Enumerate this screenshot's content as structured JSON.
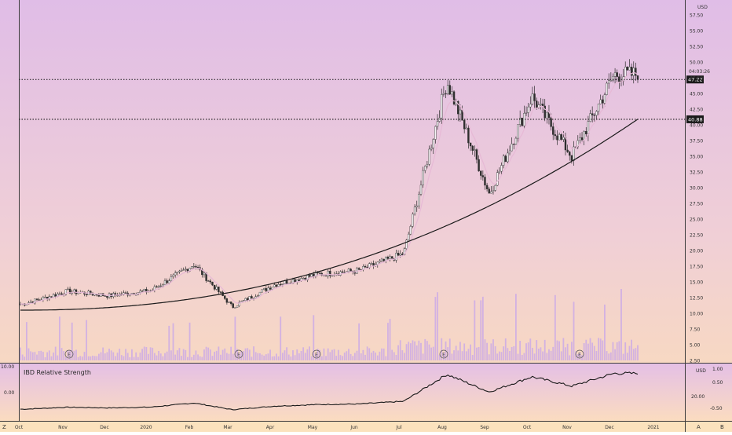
{
  "chart_data": [
    {
      "type": "candlestick",
      "currency": "USD",
      "y_ticks": [
        "57.50",
        "55.00",
        "52.50",
        "50.00",
        "47.50",
        "45.00",
        "42.50",
        "40.00",
        "37.50",
        "35.00",
        "32.50",
        "30.00",
        "27.50",
        "25.00",
        "22.50",
        "20.00",
        "17.50",
        "15.00",
        "12.50",
        "10.00",
        "7.50",
        "5.00",
        "2.50"
      ],
      "ylim": [
        2.5,
        57.5
      ],
      "x_ticks": [
        "Oct",
        "Nov",
        "Dec",
        "2020",
        "Feb",
        "Mar",
        "Apr",
        "May",
        "Jun",
        "Jul",
        "Aug",
        "Sep",
        "Oct",
        "Nov",
        "Dec",
        "2021"
      ],
      "horizontal_lines": [
        {
          "value": 47.22,
          "label": "47.22"
        },
        {
          "value": 40.88,
          "label": "40.88"
        }
      ],
      "countdown_label": "04:03:26",
      "earnings_markers": [
        "E",
        "E",
        "E",
        "E",
        "E"
      ],
      "close_by_month": [
        {
          "month": "Oct",
          "close": 11.5
        },
        {
          "month": "Nov",
          "close": 13.5
        },
        {
          "month": "Dec",
          "close": 12.8
        },
        {
          "month": "2020",
          "close": 13.6
        },
        {
          "month": "Feb",
          "close": 17.8
        },
        {
          "month": "Mar",
          "close": 11.0
        },
        {
          "month": "Apr",
          "close": 14.6
        },
        {
          "month": "May",
          "close": 16.2
        },
        {
          "month": "Jun",
          "close": 16.8
        },
        {
          "month": "Jul",
          "close": 19.5
        },
        {
          "month": "Aug",
          "close": 47.0
        },
        {
          "month": "Sep",
          "close": 29.0
        },
        {
          "month": "Oct",
          "close": 44.5
        },
        {
          "month": "Nov",
          "close": 35.0
        },
        {
          "month": "Dec",
          "close": 48.0
        }
      ],
      "moving_average": {
        "start": 10.5,
        "end": 40.9
      },
      "last_close": 47.22
    },
    {
      "type": "line",
      "title": "IBD Relative Strength",
      "left_labels": [
        "10.00",
        "0.00"
      ],
      "right_labels": [
        "USD",
        "1.00",
        "0.50",
        "20.00",
        "-0.50"
      ]
    }
  ],
  "bottom_buttons": [
    "A",
    "B",
    "Z"
  ]
}
